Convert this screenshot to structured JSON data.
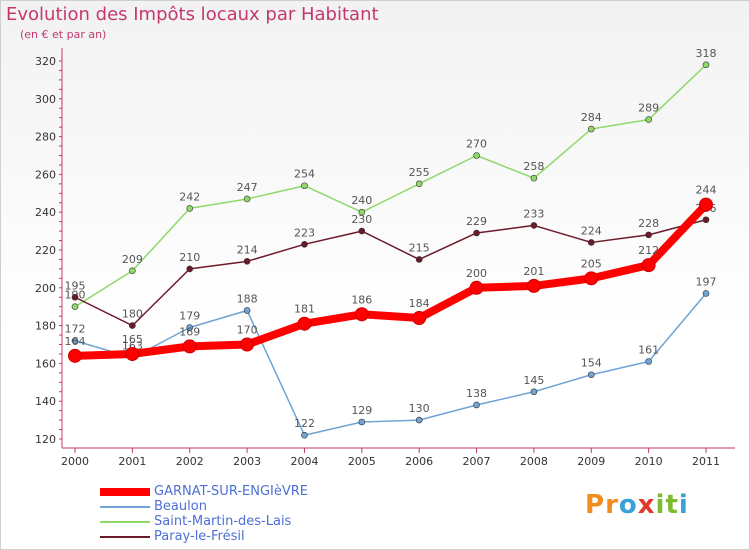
{
  "header": {
    "title": "Evolution des Impôts locaux par Habitant",
    "subtitle": "(en € et par an)"
  },
  "logo": {
    "text": "Proxiti",
    "letters": [
      "P",
      "r",
      "o",
      "x",
      "i",
      "t",
      "i"
    ],
    "colors": [
      "#f28c1e",
      "#f28c1e",
      "#3aa0d8",
      "#e23a2a",
      "#7dbb2f",
      "#7dbb2f",
      "#3aa0d8"
    ]
  },
  "chart_data": {
    "type": "line",
    "title": "Evolution des Impôts locaux par Habitant",
    "subtitle": "(en € et par an)",
    "x": [
      "2000",
      "2001",
      "2002",
      "2003",
      "2004",
      "2005",
      "2006",
      "2007",
      "2008",
      "2009",
      "2010",
      "2011"
    ],
    "ylim": [
      120,
      320
    ],
    "yticks": [
      120,
      140,
      160,
      180,
      200,
      220,
      240,
      260,
      280,
      300,
      320
    ],
    "grid": false,
    "legend_position": "bottom-left",
    "series": [
      {
        "name": "Saint-Martin-des-Lais",
        "color": "#8fd86a",
        "values": [
          190,
          209,
          242,
          247,
          254,
          240,
          255,
          270,
          258,
          284,
          289,
          318
        ]
      },
      {
        "name": "Paray-le-Frésil",
        "color": "#6b1a2a",
        "values": [
          195,
          180,
          210,
          214,
          223,
          230,
          215,
          229,
          233,
          224,
          228,
          236
        ]
      },
      {
        "name": "Beaulon",
        "color": "#6fa4d4",
        "values": [
          172,
          163,
          179,
          188,
          122,
          129,
          130,
          138,
          145,
          154,
          161,
          197
        ]
      },
      {
        "name": "GARNAT-SUR-ENGIèVRE",
        "color": "#ff0000",
        "values": [
          164,
          165,
          169,
          170,
          181,
          186,
          184,
          200,
          201,
          205,
          212,
          244
        ]
      }
    ]
  }
}
